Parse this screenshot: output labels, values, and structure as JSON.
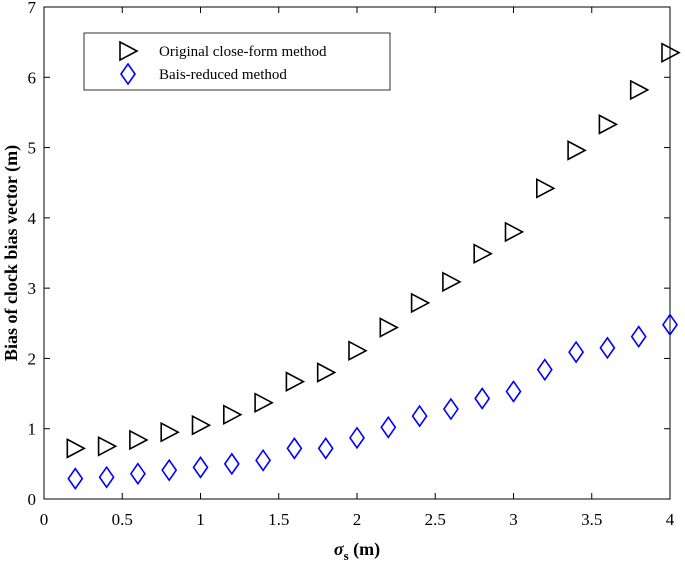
{
  "chart_data": {
    "type": "scatter",
    "xlabel": "σs (m)",
    "xlabel_parts": {
      "symbol": "σ",
      "subscript": "s",
      "unit": " (m)"
    },
    "ylabel": "Bias of clock bias vector (m)",
    "xlim": [
      0,
      4
    ],
    "ylim": [
      0,
      7
    ],
    "xticks": [
      0,
      0.5,
      1,
      1.5,
      2,
      2.5,
      3,
      3.5,
      4
    ],
    "xtick_labels": [
      "0",
      "0.5",
      "1",
      "1.5",
      "2",
      "2.5",
      "3",
      "3.5",
      "4"
    ],
    "yticks": [
      0,
      1,
      2,
      3,
      4,
      5,
      6,
      7
    ],
    "ytick_labels": [
      "0",
      "1",
      "2",
      "3",
      "4",
      "5",
      "6",
      "7"
    ],
    "grid": false,
    "legend_position": "top-left",
    "x": [
      0.2,
      0.4,
      0.6,
      0.8,
      1.0,
      1.2,
      1.4,
      1.6,
      1.8,
      2.0,
      2.2,
      2.4,
      2.6,
      2.8,
      3.0,
      3.2,
      3.4,
      3.6,
      3.8,
      4.0
    ],
    "series": [
      {
        "name": "Original close-form method",
        "marker": "triangle-right",
        "color": "#000000",
        "values": [
          0.72,
          0.75,
          0.84,
          0.95,
          1.05,
          1.2,
          1.37,
          1.67,
          1.8,
          2.11,
          2.44,
          2.79,
          3.09,
          3.49,
          3.8,
          4.42,
          4.96,
          5.33,
          5.82,
          6.35
        ]
      },
      {
        "name": "Bais-reduced method",
        "marker": "diamond",
        "color": "#0000ff",
        "values": [
          0.29,
          0.31,
          0.36,
          0.41,
          0.45,
          0.5,
          0.55,
          0.72,
          0.72,
          0.87,
          1.02,
          1.18,
          1.28,
          1.43,
          1.53,
          1.84,
          2.09,
          2.15,
          2.31,
          2.48
        ]
      }
    ]
  }
}
